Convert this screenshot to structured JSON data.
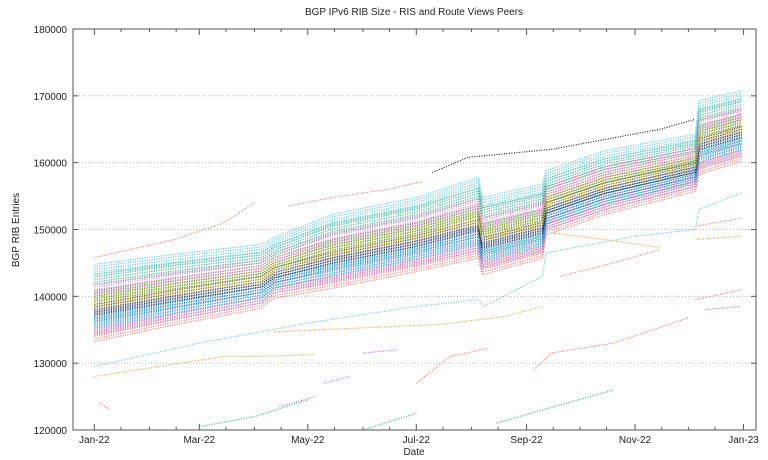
{
  "chart_data": {
    "type": "scatter",
    "title": "BGP IPv6 RIB Size - RIS and Route Views Peers",
    "xlabel": "Date",
    "ylabel": "BGP RIB Entries",
    "xlim": [
      "2021-12-20",
      "2023-01-08"
    ],
    "ylim": [
      120000,
      180000
    ],
    "grid": "horizontal dotted",
    "legend": "none",
    "x_tick_labels": [
      {
        "date": "2022-01-01",
        "label": "Jan-22"
      },
      {
        "date": "2022-03-01",
        "label": "Mar-22"
      },
      {
        "date": "2022-05-01",
        "label": "May-22"
      },
      {
        "date": "2022-07-01",
        "label": "Jul-22"
      },
      {
        "date": "2022-09-01",
        "label": "Sep-22"
      },
      {
        "date": "2022-11-01",
        "label": "Nov-22"
      },
      {
        "date": "2023-01-01",
        "label": "Jan-23"
      }
    ],
    "y_tick_labels": [
      "120000",
      "130000",
      "140000",
      "150000",
      "160000",
      "170000",
      "180000"
    ],
    "band_x": [
      "2022-01-01",
      "2022-02-15",
      "2022-04-05",
      "2022-04-12",
      "2022-05-15",
      "2022-07-01",
      "2022-08-05",
      "2022-08-07",
      "2022-09-10",
      "2022-09-12",
      "2022-10-15",
      "2022-12-05",
      "2022-12-07",
      "2022-12-31"
    ],
    "band_series": [
      {
        "color": "#f8766d",
        "values": [
          134000,
          136500,
          139000,
          140500,
          142000,
          144500,
          146500,
          144000,
          146500,
          150000,
          153000,
          156500,
          159000,
          161000
        ]
      },
      {
        "color": "#b76cf0",
        "values": [
          135000,
          137400,
          139800,
          141300,
          143000,
          145500,
          147600,
          145000,
          147500,
          150800,
          153800,
          157200,
          160000,
          161900
        ]
      },
      {
        "color": "#00bfc4",
        "values": [
          136000,
          138300,
          140600,
          142000,
          143900,
          146400,
          148600,
          146000,
          148400,
          151600,
          154600,
          157900,
          160900,
          162800
        ]
      },
      {
        "color": "#3060d0",
        "values": [
          137000,
          139200,
          141400,
          142800,
          144900,
          147400,
          149700,
          147000,
          149400,
          152400,
          155400,
          158600,
          161900,
          163700
        ]
      },
      {
        "color": "#222222",
        "values": [
          138000,
          140100,
          142200,
          143500,
          145800,
          148300,
          150700,
          148000,
          150300,
          153200,
          156200,
          159300,
          162800,
          164600
        ]
      },
      {
        "color": "#e0c020",
        "values": [
          139000,
          141000,
          143000,
          144300,
          146800,
          149300,
          151800,
          149000,
          151300,
          154000,
          157000,
          160000,
          163800,
          165500
        ]
      },
      {
        "color": "#2a8a2a",
        "values": [
          140000,
          141900,
          143800,
          145000,
          147700,
          150200,
          152800,
          150000,
          152200,
          154800,
          157800,
          160700,
          164700,
          166400
        ]
      },
      {
        "color": "#ff77cc",
        "values": [
          141000,
          142800,
          144600,
          145800,
          148700,
          151200,
          153900,
          151000,
          153200,
          155600,
          158600,
          161400,
          165700,
          167300
        ]
      },
      {
        "color": "#33b08b",
        "values": [
          142500,
          144200,
          145800,
          146900,
          150100,
          152600,
          155400,
          152500,
          154600,
          156800,
          159800,
          162500,
          167100,
          168700
        ]
      },
      {
        "color": "#5bc8d8",
        "values": [
          144000,
          145500,
          147000,
          148000,
          151500,
          154000,
          157000,
          154000,
          156000,
          158000,
          161000,
          163500,
          168500,
          170000
        ]
      }
    ],
    "outlier_series": [
      {
        "color": "#f8766d",
        "points": [
          [
            "2022-01-01",
            145800
          ],
          [
            "2022-02-15",
            148500
          ],
          [
            "2022-03-15",
            151000
          ],
          [
            "2022-04-01",
            154000
          ]
        ]
      },
      {
        "color": "#f8766d",
        "points": [
          [
            "2022-04-20",
            153500
          ],
          [
            "2022-05-15",
            154800
          ],
          [
            "2022-06-15",
            156000
          ],
          [
            "2022-07-05",
            157200
          ]
        ]
      },
      {
        "color": "#222222",
        "points": [
          [
            "2022-07-10",
            158500
          ],
          [
            "2022-07-30",
            160800
          ],
          [
            "2022-09-15",
            162000
          ],
          [
            "2022-11-15",
            165000
          ],
          [
            "2022-12-05",
            166500
          ]
        ]
      },
      {
        "color": "#5bc8d8",
        "points": [
          [
            "2022-01-01",
            129500
          ],
          [
            "2022-03-01",
            133000
          ],
          [
            "2022-05-01",
            136000
          ],
          [
            "2022-07-01",
            138500
          ],
          [
            "2022-08-05",
            139500
          ],
          [
            "2022-08-08",
            138500
          ],
          [
            "2022-09-10",
            143000
          ],
          [
            "2022-09-12",
            146500
          ],
          [
            "2022-11-01",
            149000
          ],
          [
            "2022-12-05",
            150000
          ],
          [
            "2022-12-07",
            153000
          ],
          [
            "2022-12-31",
            155500
          ]
        ]
      },
      {
        "color": "#e7a33e",
        "points": [
          [
            "2022-01-01",
            128000
          ],
          [
            "2022-03-15",
            131000
          ],
          [
            "2022-04-01",
            131000
          ],
          [
            "2022-05-05",
            131300
          ]
        ]
      },
      {
        "color": "#e7a33e",
        "points": [
          [
            "2022-04-12",
            134700
          ],
          [
            "2022-07-15",
            135800
          ],
          [
            "2022-08-20",
            137000
          ],
          [
            "2022-09-10",
            138500
          ]
        ]
      },
      {
        "color": "#e7a33e",
        "points": [
          [
            "2022-09-15",
            149500
          ],
          [
            "2022-10-15",
            148500
          ],
          [
            "2022-11-15",
            147300
          ]
        ]
      },
      {
        "color": "#e7a33e",
        "points": [
          [
            "2022-12-05",
            148500
          ],
          [
            "2022-12-31",
            149000
          ]
        ]
      },
      {
        "color": "#f8766d",
        "points": [
          [
            "2022-07-01",
            127000
          ],
          [
            "2022-07-20",
            131000
          ],
          [
            "2022-08-10",
            132200
          ]
        ]
      },
      {
        "color": "#f8766d",
        "points": [
          [
            "2022-09-05",
            129000
          ],
          [
            "2022-09-15",
            131500
          ],
          [
            "2022-10-20",
            133000
          ],
          [
            "2022-12-01",
            136800
          ]
        ]
      },
      {
        "color": "#f8766d",
        "points": [
          [
            "2022-12-05",
            139500
          ],
          [
            "2022-12-31",
            141000
          ]
        ]
      },
      {
        "color": "#f8766d",
        "points": [
          [
            "2022-09-20",
            143000
          ],
          [
            "2022-10-20",
            145000
          ],
          [
            "2022-11-15",
            147000
          ]
        ]
      },
      {
        "color": "#f8766d",
        "points": [
          [
            "2022-12-05",
            150500
          ],
          [
            "2022-12-31",
            151700
          ]
        ]
      },
      {
        "color": "#f8766d",
        "points": [
          [
            "2022-01-04",
            124000
          ],
          [
            "2022-01-10",
            123000
          ]
        ]
      },
      {
        "color": "#33b08b",
        "points": [
          [
            "2022-03-01",
            120500
          ],
          [
            "2022-04-01",
            122000
          ],
          [
            "2022-05-01",
            124500
          ]
        ]
      },
      {
        "color": "#33b08b",
        "points": [
          [
            "2022-06-01",
            120000
          ],
          [
            "2022-07-01",
            122500
          ]
        ]
      },
      {
        "color": "#33b08b",
        "points": [
          [
            "2022-08-15",
            121000
          ],
          [
            "2022-09-10",
            123000
          ],
          [
            "2022-10-20",
            126000
          ]
        ]
      },
      {
        "color": "#b76cf0",
        "points": [
          [
            "2022-04-15",
            123500
          ],
          [
            "2022-05-05",
            125000
          ]
        ]
      },
      {
        "color": "#b76cf0",
        "points": [
          [
            "2022-05-10",
            127000
          ],
          [
            "2022-05-25",
            128000
          ]
        ]
      },
      {
        "color": "#b76cf0",
        "points": [
          [
            "2022-06-01",
            131500
          ],
          [
            "2022-06-20",
            132000
          ]
        ]
      },
      {
        "color": "#b76cf0",
        "points": [
          [
            "2022-12-10",
            138000
          ],
          [
            "2022-12-31",
            138500
          ]
        ]
      }
    ]
  }
}
